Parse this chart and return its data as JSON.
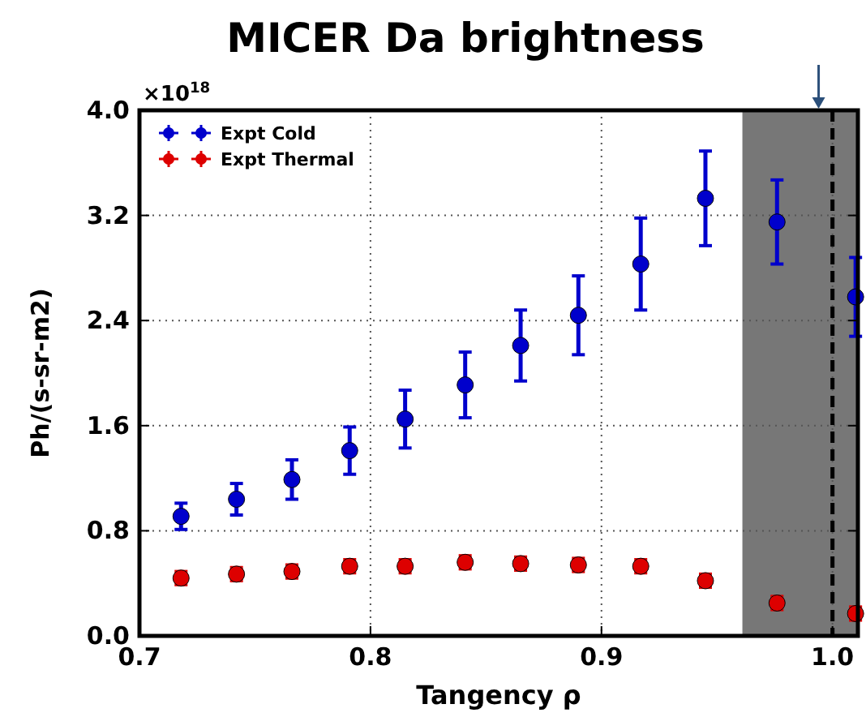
{
  "chart_data": {
    "type": "scatter",
    "title": "MICER Da brightness",
    "xlabel": "Tangency ρ",
    "ylabel": "Ph/(s-sr-m2)",
    "annotations": [
      "×10$^{18}$"
    ],
    "x": [
      0.718,
      0.742,
      0.766,
      0.791,
      0.815,
      0.841,
      0.865,
      0.89,
      0.917,
      0.945,
      0.976,
      1.01
    ],
    "series": [
      {
        "name": "Expt Cold",
        "color": "#0000cc",
        "values": [
          0.91,
          1.04,
          1.19,
          1.41,
          1.65,
          1.91,
          2.21,
          2.44,
          2.83,
          3.33,
          3.15,
          2.58
        ],
        "errors": [
          0.1,
          0.12,
          0.15,
          0.18,
          0.22,
          0.25,
          0.27,
          0.3,
          0.35,
          0.36,
          0.32,
          0.3
        ]
      },
      {
        "name": "Expt Thermal",
        "color": "#dd0000",
        "values": [
          0.44,
          0.47,
          0.49,
          0.53,
          0.53,
          0.56,
          0.55,
          0.54,
          0.53,
          0.42,
          0.25,
          0.17
        ],
        "errors": [
          0.05,
          0.05,
          0.05,
          0.05,
          0.05,
          0.05,
          0.05,
          0.05,
          0.05,
          0.05,
          0.05,
          0.05
        ]
      }
    ],
    "xlim": [
      0.7,
      1.011
    ],
    "xticks": [
      0.7,
      {
        "value": 0.8,
        "label": "0.8"
      },
      0.9,
      {
        "value": 1.0,
        "label": "1.0"
      }
    ],
    "ylim": [
      0,
      4
    ],
    "yticks": [
      {
        "value": 0,
        "label": "0.0"
      },
      0.8,
      1.6,
      2.4,
      3.2,
      {
        "value": 4,
        "label": "4.0"
      }
    ],
    "grid": true,
    "legend": "top left",
    "marker": "circle",
    "ref_lines": [
      {
        "axis": "x",
        "value": 1.0,
        "color": "#000000",
        "line_style": "dashed"
      }
    ],
    "bands": [
      {
        "axis": "x",
        "from": 0.961,
        "to": 1.011,
        "color": "#777777"
      }
    ]
  }
}
